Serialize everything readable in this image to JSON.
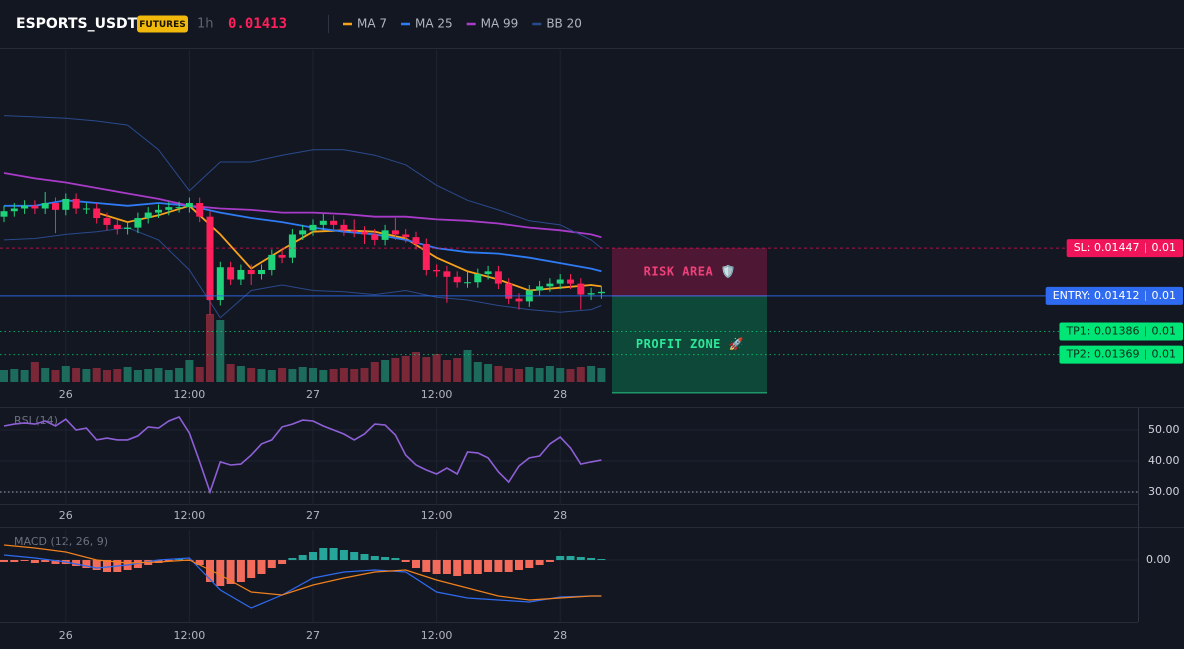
{
  "header": {
    "symbol": "ESPORTS_USDT",
    "badge": "FUTURES",
    "interval": "1h",
    "price": "0.01413"
  },
  "chart_data": [
    {
      "type": "candlestick",
      "categories": [
        null,
        null,
        null,
        null,
        null,
        null,
        "26",
        null,
        null,
        null,
        null,
        null,
        null,
        null,
        null,
        null,
        null,
        null,
        "12:00",
        null,
        null,
        null,
        null,
        null,
        null,
        null,
        null,
        null,
        null,
        null,
        "27",
        null,
        null,
        null,
        null,
        null,
        null,
        null,
        null,
        null,
        null,
        null,
        "12:00",
        null,
        null,
        null,
        null,
        null,
        null,
        null,
        null,
        null,
        null,
        null,
        "28",
        null,
        null,
        null,
        null
      ],
      "open": [
        0.0147,
        0.01474,
        0.01476,
        0.01478,
        0.01476,
        0.0148,
        0.01475,
        0.01483,
        0.01476,
        0.01476,
        0.01469,
        0.01464,
        0.01461,
        0.01462,
        0.01469,
        0.01473,
        0.01475,
        0.01477,
        0.01477,
        0.0148,
        0.0147,
        0.01409,
        0.01433,
        0.01424,
        0.01431,
        0.01428,
        0.01431,
        0.01442,
        0.0144,
        0.01457,
        0.0146,
        0.01464,
        0.01467,
        0.01464,
        0.0146,
        0.01459,
        0.01457,
        0.01453,
        0.0146,
        0.01457,
        0.01455,
        0.0145,
        0.01431,
        0.0143,
        0.01426,
        0.01422,
        0.01422,
        0.01428,
        0.0143,
        0.01421,
        0.0141,
        0.01408,
        0.01416,
        0.01419,
        0.01421,
        0.01424,
        0.01421,
        0.01413,
        0.01414
      ],
      "high": [
        0.01478,
        0.0148,
        0.01482,
        0.01482,
        0.01488,
        0.01484,
        0.01487,
        0.01487,
        0.0148,
        0.0148,
        0.01473,
        0.01468,
        0.01466,
        0.01473,
        0.01477,
        0.01479,
        0.01481,
        0.01481,
        0.01484,
        0.01484,
        0.01474,
        0.01437,
        0.01437,
        0.01435,
        0.01435,
        0.01435,
        0.01446,
        0.01446,
        0.01461,
        0.01464,
        0.01468,
        0.01472,
        0.01471,
        0.01468,
        0.01468,
        0.01463,
        0.01461,
        0.01464,
        0.01469,
        0.01461,
        0.01459,
        0.01454,
        0.01435,
        0.01434,
        0.0143,
        0.0143,
        0.01432,
        0.01434,
        0.01434,
        0.01425,
        0.01414,
        0.0142,
        0.01423,
        0.01425,
        0.01428,
        0.01428,
        0.01425,
        0.01418,
        0.01419
      ],
      "low": [
        0.01466,
        0.0147,
        0.01472,
        0.01472,
        0.01472,
        0.01458,
        0.01471,
        0.01472,
        0.01472,
        0.01465,
        0.0146,
        0.01457,
        0.01457,
        0.01458,
        0.01465,
        0.01469,
        0.01471,
        0.01473,
        0.01473,
        0.01466,
        0.01398,
        0.01405,
        0.0142,
        0.0142,
        0.0142,
        0.01424,
        0.01427,
        0.01436,
        0.01436,
        0.01453,
        0.01456,
        0.0146,
        0.0146,
        0.01456,
        0.01455,
        0.0145,
        0.01449,
        0.01449,
        0.01453,
        0.01451,
        0.01446,
        0.01427,
        0.01426,
        0.01407,
        0.01418,
        0.01418,
        0.01418,
        0.01424,
        0.01417,
        0.01406,
        0.01402,
        0.01404,
        0.01412,
        0.01415,
        0.01417,
        0.01417,
        0.01402,
        0.01409,
        0.0141
      ],
      "close": [
        0.01474,
        0.01476,
        0.01478,
        0.01476,
        0.0148,
        0.01475,
        0.01483,
        0.01476,
        0.01476,
        0.01469,
        0.01464,
        0.01461,
        0.01462,
        0.01469,
        0.01473,
        0.01475,
        0.01477,
        0.01477,
        0.0148,
        0.0147,
        0.01409,
        0.01433,
        0.01424,
        0.01431,
        0.01428,
        0.01431,
        0.01442,
        0.0144,
        0.01457,
        0.0146,
        0.01464,
        0.01467,
        0.01464,
        0.0146,
        0.01459,
        0.01457,
        0.01453,
        0.0146,
        0.01457,
        0.01455,
        0.0145,
        0.01431,
        0.0143,
        0.01426,
        0.01422,
        0.01422,
        0.01428,
        0.0143,
        0.01421,
        0.0141,
        0.01408,
        0.01416,
        0.01419,
        0.01421,
        0.01424,
        0.01421,
        0.01413,
        0.01414,
        0.01415
      ],
      "volume": [
        12,
        13,
        12,
        20,
        14,
        12,
        16,
        14,
        13,
        14,
        12,
        13,
        15,
        12,
        13,
        14,
        12,
        14,
        22,
        15,
        68,
        62,
        18,
        16,
        14,
        13,
        12,
        14,
        13,
        15,
        14,
        12,
        13,
        14,
        13,
        14,
        20,
        22,
        24,
        26,
        30,
        25,
        28,
        22,
        24,
        32,
        20,
        18,
        16,
        14,
        13,
        15,
        14,
        16,
        14,
        13,
        15,
        16,
        14
      ],
      "up_color": "#1fd37a",
      "down_color": "#ff1f5a",
      "ylim": [
        0.01349,
        0.01592
      ],
      "series": [
        {
          "name": "MA 7",
          "color": "#f7a21b",
          "x": [
            0,
            3,
            6,
            9,
            12,
            15,
            18,
            21,
            24,
            27,
            30,
            33,
            36,
            39,
            42,
            45,
            48,
            51,
            54,
            57,
            58
          ],
          "values": [
            null,
            null,
            null,
            0.01473,
            0.01466,
            0.01471,
            0.01478,
            0.01457,
            0.01432,
            0.01446,
            0.01459,
            0.0146,
            0.01459,
            0.01454,
            0.0144,
            0.0143,
            0.01424,
            0.01416,
            0.01418,
            0.0142,
            0.01419
          ]
        },
        {
          "name": "MA 25",
          "color": "#2f7bf5",
          "x": [
            0,
            3,
            6,
            9,
            12,
            15,
            18,
            21,
            24,
            27,
            30,
            33,
            36,
            39,
            42,
            45,
            48,
            51,
            54,
            57,
            58
          ],
          "values": [
            0.01478,
            0.01478,
            0.01482,
            0.0148,
            0.01478,
            0.0148,
            0.01478,
            0.01473,
            0.01469,
            0.01466,
            0.01462,
            0.01459,
            0.01457,
            0.01453,
            0.01447,
            0.01444,
            0.01443,
            0.0144,
            0.01436,
            0.01432,
            0.0143
          ]
        },
        {
          "name": "MA 99",
          "color": "#a93bc9",
          "x": [
            0,
            3,
            6,
            9,
            12,
            15,
            18,
            21,
            24,
            27,
            30,
            33,
            36,
            39,
            42,
            45,
            48,
            51,
            54,
            57,
            58
          ],
          "values": [
            0.01502,
            0.01498,
            0.01495,
            0.01491,
            0.01487,
            0.01483,
            0.01478,
            0.01476,
            0.01475,
            0.01473,
            0.01473,
            0.01472,
            0.0147,
            0.0147,
            0.01468,
            0.01467,
            0.01465,
            0.01462,
            0.0146,
            0.01457,
            0.01455
          ]
        },
        {
          "name": "BB 20",
          "color": "#2a4a8c",
          "x": [
            0,
            3,
            6,
            9,
            12,
            15,
            18,
            21,
            24,
            27,
            30,
            33,
            36,
            39,
            42,
            45,
            48,
            51,
            54,
            57,
            58
          ],
          "values": [
            0.01544,
            0.01543,
            0.01542,
            0.0154,
            0.01537,
            0.01519,
            0.01489,
            0.0151,
            0.0151,
            0.01515,
            0.01519,
            0.01519,
            0.01515,
            0.01508,
            0.01493,
            0.01482,
            0.01475,
            0.01467,
            0.01464,
            0.01453,
            0.01447
          ],
          "lower": [
            0.01453,
            0.01454,
            0.01457,
            0.01459,
            0.01462,
            0.01453,
            0.01431,
            0.01396,
            0.01416,
            0.0142,
            0.01416,
            0.01415,
            0.01413,
            0.01416,
            0.01411,
            0.01409,
            0.01405,
            0.01402,
            0.014,
            0.01402,
            0.01405
          ]
        }
      ],
      "levels": [
        {
          "label": "SL: 0.01447",
          "value": 0.01447,
          "size": "0.01",
          "color": "#f0145a",
          "text_color": "#ffffff",
          "line_style": "dashed"
        },
        {
          "label": "ENTRY: 0.01412",
          "value": 0.01412,
          "size": "0.01",
          "color": "#2f6bf0",
          "text_color": "#ffffff",
          "line_style": "solid"
        },
        {
          "label": "TP1: 0.01386",
          "value": 0.01386,
          "size": "0.01",
          "color": "#00e676",
          "text_color": "#0b2a1a",
          "line_style": "dotted"
        },
        {
          "label": "TP2: 0.01369",
          "value": 0.01369,
          "size": "0.01",
          "color": "#00e676",
          "text_color": "#0b2a1a",
          "line_style": "dotted"
        }
      ],
      "zones": [
        {
          "label": "RISK AREA 🛡️",
          "from": 0.01447,
          "to": 0.01412,
          "color": "#e91e63",
          "text_color": "#f0407a"
        },
        {
          "label": "PROFIT ZONE 🚀",
          "from": 0.01412,
          "to": 0.01341,
          "color": "#00c878",
          "text_color": "#2ee89a"
        }
      ]
    },
    {
      "type": "line",
      "title": "RSI (14)",
      "categories": [
        null,
        null,
        null,
        null,
        null,
        null,
        "26",
        null,
        null,
        null,
        null,
        null,
        null,
        null,
        null,
        null,
        null,
        null,
        "12:00",
        null,
        null,
        null,
        null,
        null,
        null,
        null,
        null,
        null,
        null,
        null,
        "27",
        null,
        null,
        null,
        null,
        null,
        null,
        null,
        null,
        null,
        null,
        null,
        "12:00",
        null,
        null,
        null,
        null,
        null,
        null,
        null,
        null,
        null,
        null,
        null,
        "28",
        null,
        null,
        null,
        null
      ],
      "values": [
        51.3,
        51.9,
        52.3,
        51.9,
        52.9,
        51.3,
        53.5,
        50.0,
        50.6,
        46.8,
        47.4,
        46.8,
        46.8,
        48.1,
        51.0,
        50.6,
        52.9,
        54.2,
        49.0,
        39.7,
        30.0,
        39.7,
        38.7,
        39.0,
        41.9,
        45.5,
        46.8,
        51.0,
        51.9,
        53.2,
        52.9,
        51.3,
        50.0,
        48.7,
        46.8,
        48.7,
        51.9,
        51.6,
        48.4,
        41.9,
        38.7,
        37.1,
        35.8,
        37.7,
        35.8,
        42.9,
        42.6,
        41.0,
        36.5,
        33.2,
        38.4,
        41.0,
        41.6,
        45.5,
        47.7,
        44.2,
        39.0,
        39.7,
        40.3
      ],
      "color": "#8e5fd6",
      "ylim": [
        25.8,
        57.1
      ],
      "yticks": [
        {
          "value": 50,
          "label": "50.00"
        },
        {
          "value": 40,
          "label": "40.00"
        },
        {
          "value": 30,
          "label": "30.00"
        }
      ],
      "reference": 30
    },
    {
      "type": "macd",
      "title": "MACD (12, 26, 9)",
      "categories": [
        null,
        null,
        null,
        null,
        null,
        null,
        "26",
        null,
        null,
        null,
        null,
        null,
        null,
        null,
        null,
        null,
        null,
        null,
        "12:00",
        null,
        null,
        null,
        null,
        null,
        null,
        null,
        null,
        null,
        null,
        null,
        "27",
        null,
        null,
        null,
        null,
        null,
        null,
        null,
        null,
        null,
        null,
        null,
        "12:00",
        null,
        null,
        null,
        null,
        null,
        null,
        null,
        null,
        null,
        null,
        null,
        "28",
        null,
        null,
        null,
        null
      ],
      "histogram": [
        -4e-06,
        -4e-06,
        -2e-06,
        -6e-06,
        -4e-06,
        -8e-06,
        -8e-06,
        -1.2e-05,
        -1.6e-05,
        -2e-05,
        -2.4e-05,
        -2.4e-05,
        -2e-05,
        -1.6e-05,
        -1e-05,
        -6e-06,
        -2e-06,
        2e-06,
        -2e-06,
        -1e-05,
        -4.4e-05,
        -5.2e-05,
        -4.8e-05,
        -4.4e-05,
        -3.6e-05,
        -2.8e-05,
        -1.6e-05,
        -8e-06,
        4e-06,
        1e-05,
        1.6e-05,
        2.4e-05,
        2.4e-05,
        2e-05,
        1.6e-05,
        1.2e-05,
        8e-06,
        6e-06,
        4e-06,
        -4e-06,
        -1.6e-05,
        -2.4e-05,
        -2.8e-05,
        -2.8e-05,
        -3.2e-05,
        -2.8e-05,
        -2.8e-05,
        -2.4e-05,
        -2.4e-05,
        -2.4e-05,
        -2e-05,
        -1.6e-05,
        -1e-05,
        -4e-06,
        8e-06,
        8e-06,
        6e-06,
        4e-06,
        2e-06
      ],
      "up_color": "#26a69a",
      "down_color": "#f26b5b",
      "series": [
        {
          "color": "#2f6bf0",
          "x": [
            0,
            3,
            6,
            9,
            12,
            15,
            18,
            21,
            24,
            27,
            30,
            33,
            36,
            39,
            42,
            45,
            48,
            51,
            54,
            57,
            58
          ],
          "values": [
            1e-05,
            4e-06,
            -4e-06,
            -1.6e-05,
            -1e-05,
            0,
            4e-06,
            -6e-05,
            -9.6e-05,
            -7e-05,
            -3.6e-05,
            -2.4e-05,
            -2e-05,
            -2.4e-05,
            -6.4e-05,
            -7.6e-05,
            -8e-05,
            -8.4e-05,
            -7.4e-05,
            -7.2e-05,
            -7.2e-05
          ]
        },
        {
          "color": "#f0801e",
          "x": [
            0,
            3,
            6,
            9,
            12,
            15,
            18,
            21,
            24,
            27,
            30,
            33,
            36,
            39,
            42,
            45,
            48,
            51,
            54,
            57,
            58
          ],
          "values": [
            3e-05,
            2.4e-05,
            1.6e-05,
            0,
            -6e-06,
            -4e-06,
            0,
            -3e-05,
            -6.4e-05,
            -7e-05,
            -5e-05,
            -3.6e-05,
            -2.4e-05,
            -2e-05,
            -4e-05,
            -5.6e-05,
            -7.2e-05,
            -8e-05,
            -7.6e-05,
            -7.2e-05,
            -7.2e-05
          ]
        }
      ],
      "ylim": [
        -0.000124,
        6e-05
      ],
      "yticks": [
        {
          "value": 0,
          "label": "0.00"
        }
      ]
    }
  ]
}
